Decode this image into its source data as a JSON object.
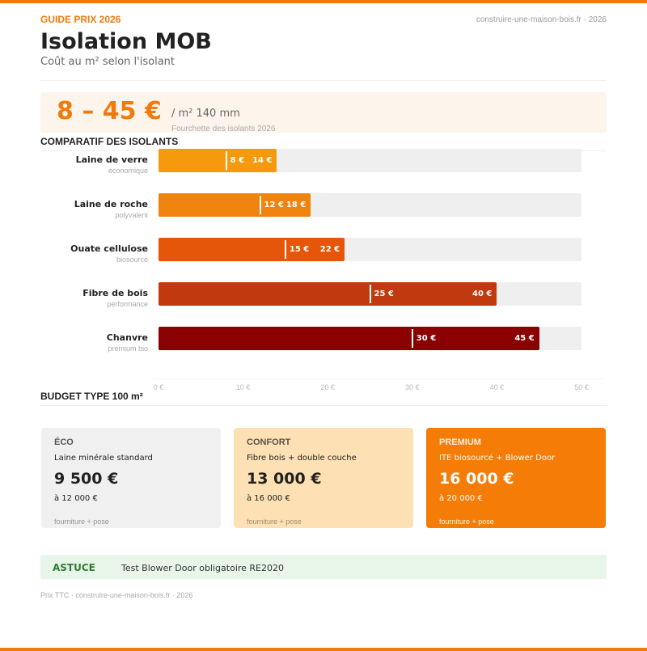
{
  "header": {
    "kicker": "GUIDE PRIX 2026",
    "site": "construire-une-maison-bois.fr · 2026",
    "title": "Isolation MOB",
    "subtitle": "Coût au m² selon l'isolant"
  },
  "hero": {
    "value": "8 – 45 €",
    "unit": "/ m² 140 mm",
    "note": "Fourchette des isolants 2026"
  },
  "chart_data": {
    "type": "bar",
    "title": "COMPARATIF DES ISOLANTS",
    "orientation": "horizontal",
    "xlim": [
      0,
      50
    ],
    "ticks": [
      "0 €",
      "10 €",
      "20 €",
      "30 €",
      "40 €",
      "50 €"
    ],
    "categories": [
      "Laine de verre",
      "Laine de roche",
      "Ouate cellulose",
      "Fibre de bois",
      "Chanvre"
    ],
    "subtitles": [
      "économique",
      "polyvalent",
      "biosourcé",
      "performance",
      "premium bio"
    ],
    "min": [
      8,
      12,
      15,
      25,
      30
    ],
    "max": [
      14,
      18,
      22,
      40,
      45
    ],
    "min_labels": [
      "8 €",
      "12 €",
      "15 €",
      "25 €",
      "30 €"
    ],
    "max_labels": [
      "14 €",
      "18 €",
      "22 €",
      "40 €",
      "45 €"
    ],
    "colors": [
      "#f7990c",
      "#f0820e",
      "#e5550a",
      "#c0390f",
      "#8b0000"
    ],
    "grid": false
  },
  "budget": {
    "title": "BUDGET TYPE 100 m²",
    "cards": [
      {
        "tier": "ÉCO",
        "desc": "Laine minérale standard",
        "price": "9 500 €",
        "range": "à 12 000 €",
        "note": "fourniture + pose",
        "bg": "#f0f0f0",
        "fg": "#222"
      },
      {
        "tier": "CONFORT",
        "desc": "Fibre bois + double couche",
        "price": "13 000 €",
        "range": "à 16 000 €",
        "note": "fourniture + pose",
        "bg": "#fde0b3",
        "fg": "#222"
      },
      {
        "tier": "PREMIUM",
        "desc": "ITE biosourcé + Blower Door",
        "price": "16 000 €",
        "range": "à 20 000 €",
        "note": "fourniture + pose",
        "bg": "#f47c07",
        "fg": "#fff"
      }
    ]
  },
  "tip": {
    "label": "ASTUCE",
    "text": "Test Blower Door obligatoire RE2020"
  },
  "footer": "Prix TTC · construire-une-maison-bois.fr · 2026"
}
